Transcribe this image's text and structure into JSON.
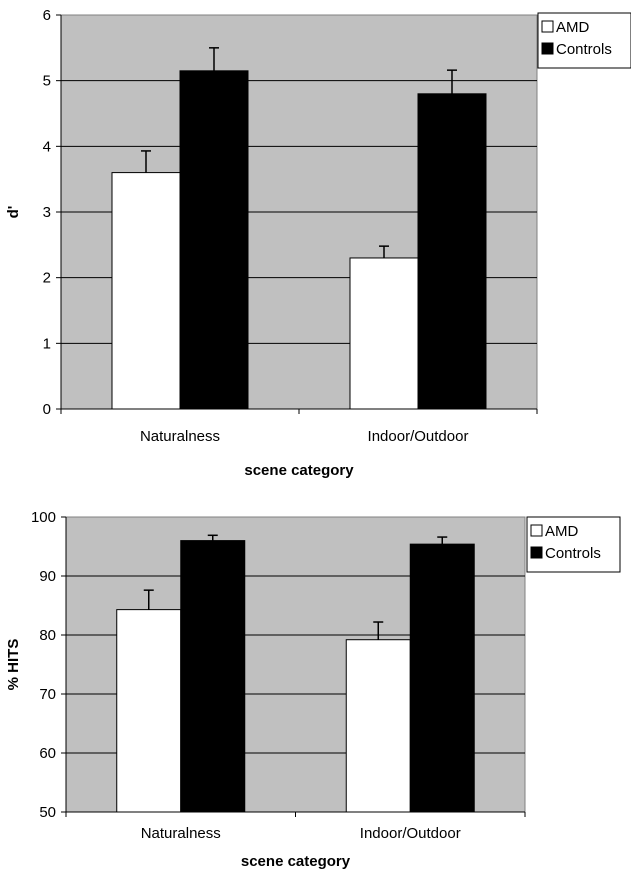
{
  "chart_data": [
    {
      "type": "bar",
      "categories": [
        "Naturalness",
        "Indoor/Outdoor"
      ],
      "series": [
        {
          "name": "AMD",
          "values": [
            3.6,
            2.3
          ],
          "errors": [
            0.33,
            0.18
          ],
          "color": "#ffffff"
        },
        {
          "name": "Controls",
          "values": [
            5.15,
            4.8
          ],
          "errors": [
            0.35,
            0.36
          ],
          "color": "#000000"
        }
      ],
      "xlabel": "scene category",
      "ylabel": "d'",
      "ylim": [
        0,
        6
      ],
      "yticks": [
        "0",
        "1",
        "2",
        "3",
        "4",
        "5",
        "6"
      ],
      "grid": true,
      "plot_background": "#c0c0c0",
      "legend_position": "right"
    },
    {
      "type": "bar",
      "categories": [
        "Naturalness",
        "Indoor/Outdoor"
      ],
      "series": [
        {
          "name": "AMD",
          "values": [
            84.3,
            79.2
          ],
          "errors": [
            3.3,
            3.0
          ],
          "color": "#ffffff"
        },
        {
          "name": "Controls",
          "values": [
            96.0,
            95.4
          ],
          "errors": [
            0.9,
            1.2
          ],
          "color": "#000000"
        }
      ],
      "xlabel": "scene category",
      "ylabel": "% HITS",
      "ylim": [
        50,
        100
      ],
      "yticks": [
        "50",
        "60",
        "70",
        "80",
        "90",
        "100"
      ],
      "grid": true,
      "plot_background": "#c0c0c0",
      "legend_position": "right"
    }
  ]
}
